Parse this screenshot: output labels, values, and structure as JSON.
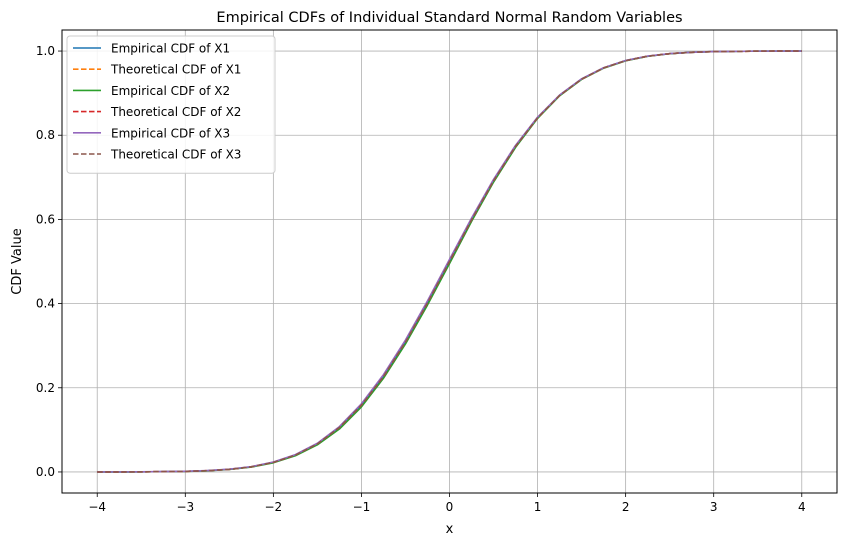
{
  "chart_data": {
    "type": "line",
    "title": "Empirical CDFs of Individual Standard Normal Random Variables",
    "xlabel": "x",
    "ylabel": "CDF Value",
    "xlim": [
      -4.4,
      4.4
    ],
    "ylim": [
      -0.05,
      1.05
    ],
    "xticks": [
      -4,
      -3,
      -2,
      -1,
      0,
      1,
      2,
      3,
      4
    ],
    "xtick_labels": [
      "−4",
      "−3",
      "−2",
      "−1",
      "0",
      "1",
      "2",
      "3",
      "4"
    ],
    "yticks": [
      0.0,
      0.2,
      0.4,
      0.6,
      0.8,
      1.0
    ],
    "ytick_labels": [
      "0.0",
      "0.2",
      "0.4",
      "0.6",
      "0.8",
      "1.0"
    ],
    "grid": true,
    "legend_position": "upper-left",
    "x": [
      -4.0,
      -3.5,
      -3.0,
      -2.75,
      -2.5,
      -2.25,
      -2.0,
      -1.75,
      -1.5,
      -1.25,
      -1.0,
      -0.75,
      -0.5,
      -0.25,
      0.0,
      0.25,
      0.5,
      0.75,
      1.0,
      1.25,
      1.5,
      1.75,
      2.0,
      2.25,
      2.5,
      2.75,
      3.0,
      3.5,
      4.0
    ],
    "series": [
      {
        "name": "Empirical CDF of X1",
        "color": "#1f77b4",
        "style": "solid",
        "values": [
          0.0,
          0.0002,
          0.0014,
          0.003,
          0.0062,
          0.0122,
          0.0229,
          0.0402,
          0.0669,
          0.1058,
          0.159,
          0.2272,
          0.309,
          0.402,
          0.5005,
          0.599,
          0.692,
          0.7737,
          0.842,
          0.8949,
          0.9336,
          0.96,
          0.9774,
          0.9878,
          0.9938,
          0.997,
          0.9987,
          0.9998,
          1.0
        ]
      },
      {
        "name": "Theoretical CDF of X1",
        "color": "#ff7f0e",
        "style": "dashed",
        "values": [
          3e-05,
          0.00023,
          0.00135,
          0.003,
          0.0062,
          0.0122,
          0.0228,
          0.0401,
          0.0668,
          0.1056,
          0.1587,
          0.2266,
          0.3085,
          0.4013,
          0.5,
          0.5987,
          0.6915,
          0.7734,
          0.8413,
          0.8944,
          0.9332,
          0.9599,
          0.9772,
          0.9878,
          0.9938,
          0.997,
          0.99865,
          0.99977,
          0.99997
        ]
      },
      {
        "name": "Empirical CDF of X2",
        "color": "#2ca02c",
        "style": "solid",
        "values": [
          0.0,
          0.0002,
          0.0013,
          0.0028,
          0.0058,
          0.0115,
          0.0218,
          0.0385,
          0.0645,
          0.102,
          0.1545,
          0.2225,
          0.304,
          0.3965,
          0.495,
          0.595,
          0.6885,
          0.771,
          0.84,
          0.8935,
          0.9325,
          0.9592,
          0.9768,
          0.9874,
          0.9936,
          0.9969,
          0.9986,
          0.9998,
          1.0
        ]
      },
      {
        "name": "Theoretical CDF of X2",
        "color": "#d62728",
        "style": "dashed",
        "values": [
          3e-05,
          0.00023,
          0.00135,
          0.003,
          0.0062,
          0.0122,
          0.0228,
          0.0401,
          0.0668,
          0.1056,
          0.1587,
          0.2266,
          0.3085,
          0.4013,
          0.5,
          0.5987,
          0.6915,
          0.7734,
          0.8413,
          0.8944,
          0.9332,
          0.9599,
          0.9772,
          0.9878,
          0.9938,
          0.997,
          0.99865,
          0.99977,
          0.99997
        ]
      },
      {
        "name": "Empirical CDF of X3",
        "color": "#9467bd",
        "style": "solid",
        "values": [
          0.0,
          0.0003,
          0.0015,
          0.0032,
          0.0065,
          0.0127,
          0.0236,
          0.0412,
          0.0682,
          0.1078,
          0.162,
          0.231,
          0.3135,
          0.4065,
          0.505,
          0.603,
          0.695,
          0.776,
          0.843,
          0.8955,
          0.934,
          0.9603,
          0.9776,
          0.988,
          0.9939,
          0.9971,
          0.9987,
          0.9998,
          1.0
        ]
      },
      {
        "name": "Theoretical CDF of X3",
        "color": "#8c564b",
        "style": "dashed",
        "values": [
          3e-05,
          0.00023,
          0.00135,
          0.003,
          0.0062,
          0.0122,
          0.0228,
          0.0401,
          0.0668,
          0.1056,
          0.1587,
          0.2266,
          0.3085,
          0.4013,
          0.5,
          0.5987,
          0.6915,
          0.7734,
          0.8413,
          0.8944,
          0.9332,
          0.9599,
          0.9772,
          0.9878,
          0.9938,
          0.997,
          0.99865,
          0.99977,
          0.99997
        ]
      }
    ]
  }
}
